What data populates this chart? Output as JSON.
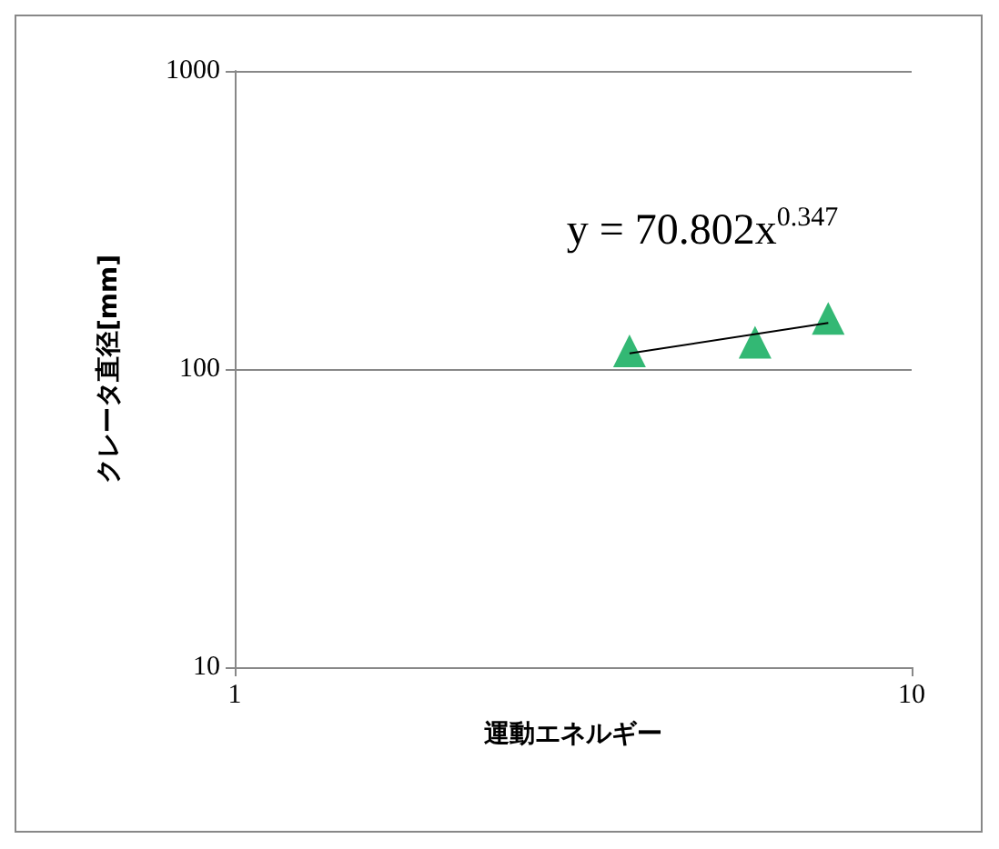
{
  "chart_data": {
    "type": "scatter",
    "xlabel": "運動エネルギー",
    "ylabel": "クレータ直径[mm]",
    "log": "xy",
    "xlim": [
      1,
      10
    ],
    "xticks": [
      1,
      10
    ],
    "ylim": [
      10,
      1000
    ],
    "yticks": [
      10,
      100,
      1000
    ],
    "grid": "y",
    "marker": "triangle",
    "series": [
      {
        "color": "#00a651",
        "x": [
          3.83,
          5.87,
          7.53
        ],
        "values": [
          115,
          123,
          148
        ]
      },
      {
        "type": "line",
        "color": "#000000",
        "x": [
          3.83,
          7.53
        ],
        "values": [
          112.9,
          142.7
        ],
        "marker": "none"
      }
    ],
    "annotations": [
      "y = 70.802x$^{0.347}$"
    ]
  }
}
